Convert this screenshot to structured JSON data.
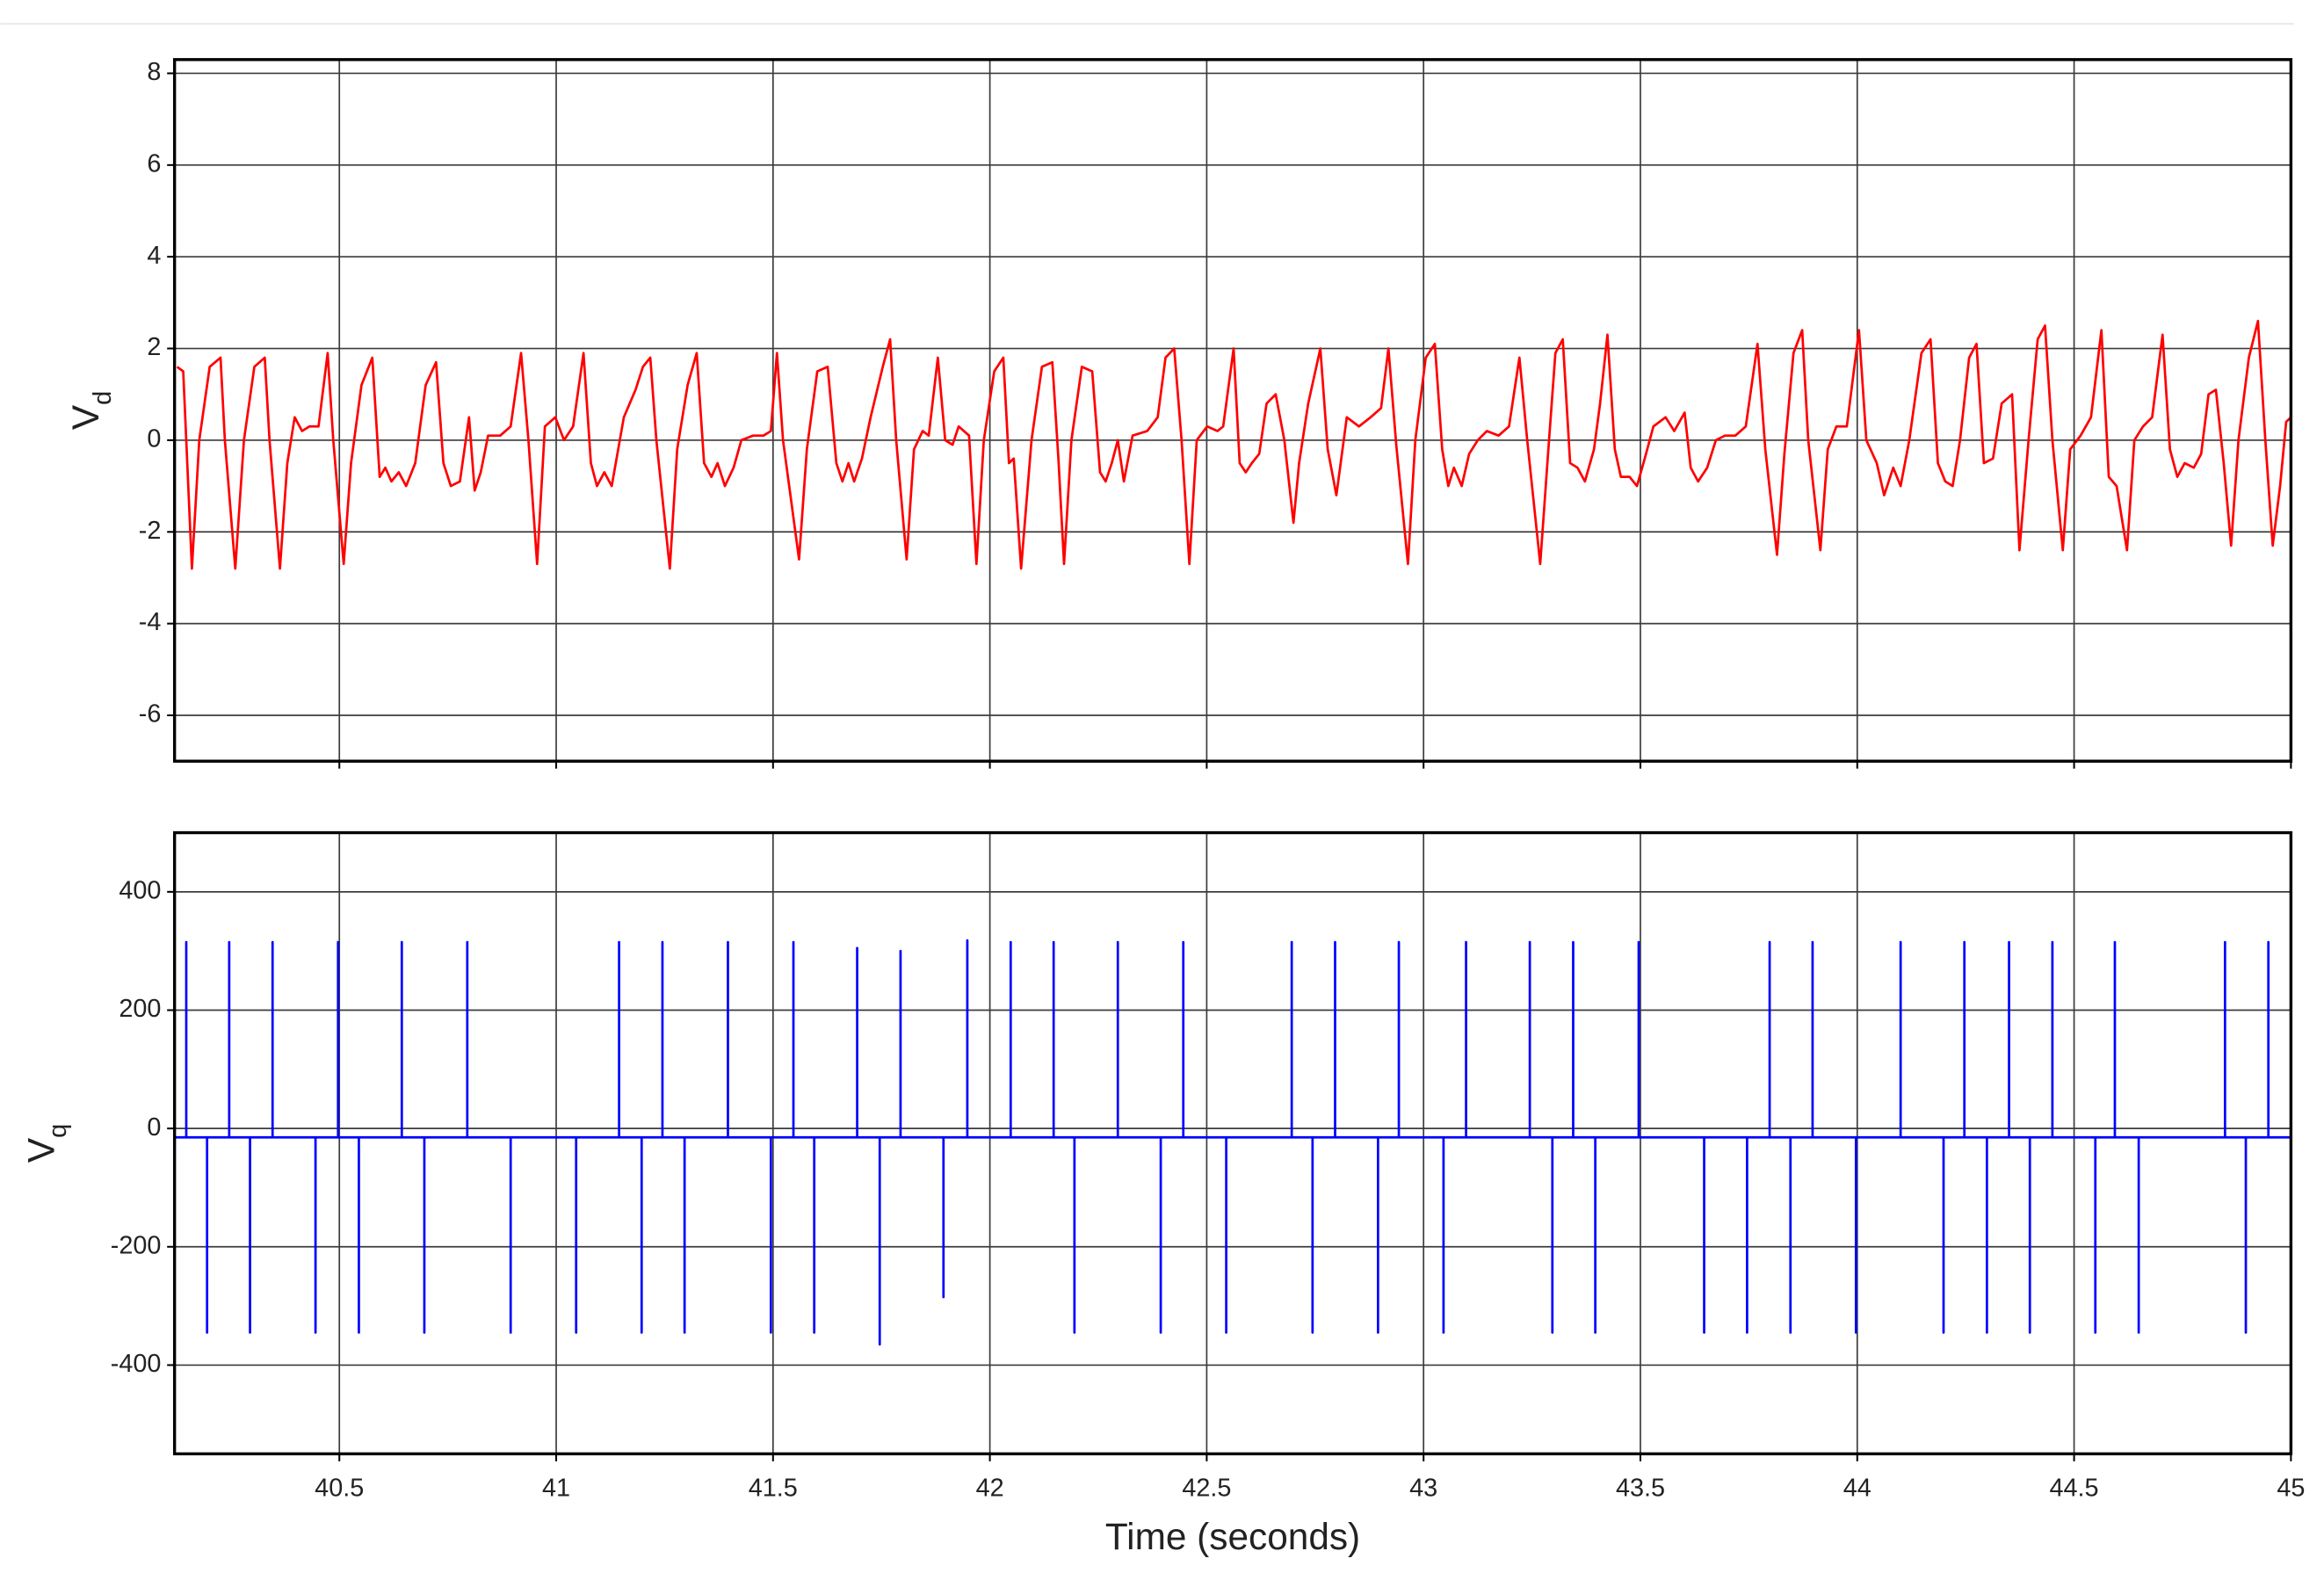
{
  "chart_data": [
    {
      "type": "line",
      "ylabel": "V",
      "ylabel_sub": "d",
      "grid": true,
      "xlim": [
        40.12,
        45
      ],
      "xticks": [
        40.5,
        41,
        41.5,
        42,
        42.5,
        43,
        43.5,
        44,
        44.5,
        45
      ],
      "xtick_labels_shown": false,
      "ylim": [
        -7,
        8.3
      ],
      "yticks": [
        -6,
        -4,
        -2,
        0,
        2,
        4,
        6,
        8
      ],
      "x": [
        40.126,
        40.14,
        40.16,
        40.177,
        40.201,
        40.226,
        40.236,
        40.26,
        40.28,
        40.304,
        40.328,
        40.339,
        40.363,
        40.38,
        40.397,
        40.414,
        40.431,
        40.452,
        40.473,
        40.486,
        40.51,
        40.527,
        40.551,
        40.576,
        40.593,
        40.606,
        40.62,
        40.637,
        40.654,
        40.675,
        40.699,
        40.723,
        40.74,
        40.757,
        40.778,
        40.799,
        40.812,
        40.826,
        40.843,
        40.871,
        40.895,
        40.919,
        40.936,
        40.956,
        40.974,
        40.998,
        41.018,
        41.039,
        41.063,
        41.08,
        41.094,
        41.111,
        41.128,
        41.156,
        41.183,
        41.2,
        41.217,
        41.231,
        41.262,
        41.279,
        41.303,
        41.324,
        41.341,
        41.358,
        41.372,
        41.389,
        41.409,
        41.427,
        41.454,
        41.478,
        41.495,
        41.509,
        41.523,
        41.56,
        41.578,
        41.602,
        41.626,
        41.646,
        41.66,
        41.674,
        41.687,
        41.705,
        41.725,
        41.753,
        41.77,
        41.784,
        41.808,
        41.825,
        41.845,
        41.859,
        41.88,
        41.897,
        41.914,
        41.928,
        41.952,
        41.969,
        41.986,
        42.01,
        42.031,
        42.044,
        42.055,
        42.072,
        42.096,
        42.12,
        42.144,
        42.158,
        42.171,
        42.188,
        42.212,
        42.236,
        42.254,
        42.267,
        42.281,
        42.295,
        42.309,
        42.329,
        42.363,
        42.387,
        42.405,
        42.425,
        42.442,
        42.46,
        42.477,
        42.501,
        42.525,
        42.538,
        42.562,
        42.576,
        42.59,
        42.604,
        42.621,
        42.638,
        42.659,
        42.679,
        42.7,
        42.713,
        42.734,
        42.762,
        42.779,
        42.799,
        42.823,
        42.851,
        42.878,
        42.902,
        42.919,
        42.937,
        42.964,
        42.981,
        43.005,
        43.026,
        43.043,
        43.057,
        43.07,
        43.088,
        43.105,
        43.125,
        43.146,
        43.173,
        43.197,
        43.221,
        43.239,
        43.269,
        43.287,
        43.304,
        43.321,
        43.338,
        43.355,
        43.372,
        43.393,
        43.407,
        43.424,
        43.441,
        43.455,
        43.475,
        43.492,
        43.51,
        43.53,
        43.558,
        43.578,
        43.602,
        43.616,
        43.633,
        43.654,
        43.674,
        43.695,
        43.719,
        43.743,
        43.77,
        43.788,
        43.815,
        43.832,
        43.853,
        43.873,
        43.887,
        43.915,
        43.932,
        43.952,
        43.976,
        44.004,
        44.021,
        44.045,
        44.062,
        44.083,
        44.1,
        44.12,
        44.148,
        44.169,
        44.186,
        44.203,
        44.22,
        44.237,
        44.258,
        44.275,
        44.292,
        44.313,
        44.333,
        44.357,
        44.374,
        44.395,
        44.416,
        44.433,
        44.45,
        44.474,
        44.491,
        44.515,
        44.539,
        44.563,
        44.58,
        44.598,
        44.622,
        44.639,
        44.659,
        44.68,
        44.704,
        44.721,
        44.738,
        44.755,
        44.776,
        44.793,
        44.81,
        44.827,
        44.845,
        44.862,
        44.879,
        44.903,
        44.924,
        44.941,
        44.958,
        44.975,
        44.989,
        45.0
      ],
      "series": [
        {
          "color": "#ff0000",
          "values": [
            1.6,
            1.5,
            -2.8,
            0,
            1.6,
            1.8,
            0,
            -2.8,
            0,
            1.6,
            1.8,
            0,
            -2.8,
            -0.5,
            0.5,
            0.2,
            0.3,
            0.3,
            1.9,
            0,
            -2.7,
            -0.5,
            1.2,
            1.8,
            -0.8,
            -0.6,
            -0.9,
            -0.7,
            -1.0,
            -0.5,
            1.2,
            1.7,
            -0.5,
            -1.0,
            -0.9,
            0.5,
            -1.1,
            -0.7,
            0.1,
            0.1,
            0.3,
            1.9,
            0,
            -2.7,
            0.3,
            0.5,
            0,
            0.3,
            1.9,
            -0.5,
            -1.0,
            -0.7,
            -1.0,
            0.5,
            1.1,
            1.6,
            1.8,
            0,
            -2.8,
            -0.2,
            1.2,
            1.9,
            -0.5,
            -0.8,
            -0.5,
            -1.0,
            -0.6,
            0,
            0.1,
            0.1,
            0.2,
            1.9,
            0,
            -2.6,
            -0.2,
            1.5,
            1.6,
            -0.5,
            -0.9,
            -0.5,
            -0.9,
            -0.4,
            0.5,
            1.6,
            2.2,
            0,
            -2.6,
            -0.2,
            0.2,
            0.1,
            1.8,
            0,
            -0.1,
            0.3,
            0.1,
            -2.7,
            0,
            1.5,
            1.8,
            -0.5,
            -0.4,
            -2.8,
            0,
            1.6,
            1.7,
            -0.4,
            -2.7,
            0,
            1.6,
            1.5,
            -0.7,
            -0.9,
            -0.5,
            0,
            -0.9,
            0.1,
            0.2,
            0.5,
            1.8,
            2.0,
            0,
            -2.7,
            0,
            0.3,
            0.2,
            0.3,
            2.0,
            -0.5,
            -0.7,
            -0.5,
            -0.3,
            0.8,
            1.0,
            0,
            -1.8,
            -0.5,
            0.8,
            2.0,
            -0.2,
            -1.2,
            0.5,
            0.3,
            0.5,
            0.7,
            2.0,
            -0.1,
            -2.7,
            0,
            1.8,
            2.1,
            -0.2,
            -1.0,
            -0.6,
            -1.0,
            -0.3,
            0,
            0.2,
            0.1,
            0.3,
            1.8,
            0,
            -2.7,
            -0.3,
            1.9,
            2.2,
            -0.5,
            -0.6,
            -0.9,
            -0.2,
            0.8,
            2.3,
            -0.2,
            -0.8,
            -0.8,
            -1.0,
            -0.4,
            0.3,
            0.5,
            0.2,
            0.6,
            -0.6,
            -0.9,
            -0.6,
            0,
            0.1,
            0.1,
            0.3,
            2.1,
            -0.2,
            -2.5,
            -0.3,
            1.9,
            2.4,
            0,
            -2.4,
            -0.2,
            0.3,
            0.3,
            2.4,
            0,
            -0.5,
            -1.2,
            -0.6,
            -1.0,
            0,
            1.9,
            2.2,
            -0.5,
            -0.9,
            -1.0,
            0,
            1.8,
            2.1,
            -0.5,
            -0.4,
            0.8,
            1.0,
            -2.4,
            0,
            2.2,
            2.5,
            0,
            -2.4,
            -0.2,
            0.1,
            0.5,
            2.4,
            -0.8,
            -1.0,
            -2.4,
            0,
            0.3,
            0.5,
            2.3,
            -0.2,
            -0.8,
            -0.5,
            -0.6,
            -0.3,
            1.0,
            1.1,
            -0.5,
            -2.3,
            0,
            1.8,
            2.6,
            0,
            -2.3,
            -1.0,
            0.4,
            0.5
          ]
        }
      ]
    },
    {
      "type": "line",
      "ylabel": "V",
      "ylabel_sub": "q",
      "xlabel": "Time (seconds)",
      "grid": true,
      "xlim": [
        40.12,
        45
      ],
      "xticks": [
        40.5,
        41,
        41.5,
        42,
        42.5,
        43,
        43.5,
        44,
        44.5,
        45
      ],
      "xtick_labels_shown": true,
      "ylim": [
        -550,
        500
      ],
      "yticks": [
        -400,
        -200,
        0,
        200,
        400
      ],
      "x": [
        40.12,
        40.147,
        40.147,
        40.147,
        40.195,
        40.195,
        40.195,
        40.246,
        40.246,
        40.246,
        40.294,
        40.294,
        40.294,
        40.346,
        40.346,
        40.346,
        40.445,
        40.445,
        40.445,
        40.497,
        40.497,
        40.497,
        40.545,
        40.545,
        40.545,
        40.644,
        40.644,
        40.644,
        40.696,
        40.696,
        40.696,
        40.795,
        40.795,
        40.795,
        40.895,
        40.895,
        40.895,
        41.046,
        41.046,
        41.046,
        41.145,
        41.145,
        41.145,
        41.197,
        41.197,
        41.197,
        41.245,
        41.245,
        41.245,
        41.296,
        41.296,
        41.296,
        41.396,
        41.396,
        41.396,
        41.495,
        41.495,
        41.495,
        41.547,
        41.547,
        41.547,
        41.595,
        41.595,
        41.595,
        41.694,
        41.694,
        41.694,
        41.746,
        41.746,
        41.746,
        41.794,
        41.794,
        41.794,
        41.893,
        41.893,
        41.893,
        41.948,
        41.948,
        41.948,
        42.048,
        42.048,
        42.048,
        42.147,
        42.147,
        42.147,
        42.195,
        42.195,
        42.195,
        42.295,
        42.295,
        42.295,
        42.394,
        42.394,
        42.394,
        42.446,
        42.446,
        42.446,
        42.545,
        42.545,
        42.545,
        42.696,
        42.696,
        42.696,
        42.744,
        42.744,
        42.744,
        42.796,
        42.796,
        42.796,
        42.895,
        42.895,
        42.895,
        42.943,
        42.943,
        42.943,
        43.046,
        43.046,
        43.046,
        43.098,
        43.098,
        43.098,
        43.245,
        43.245,
        43.245,
        43.297,
        43.297,
        43.297,
        43.345,
        43.345,
        43.345,
        43.396,
        43.396,
        43.396,
        43.496,
        43.496,
        43.496,
        43.647,
        43.647,
        43.647,
        43.746,
        43.746,
        43.746,
        43.798,
        43.798,
        43.798,
        43.846,
        43.846,
        43.846,
        43.897,
        43.897,
        43.897,
        43.997,
        43.997,
        43.997,
        44.1,
        44.1,
        44.1,
        44.199,
        44.199,
        44.199,
        44.247,
        44.247,
        44.247,
        44.299,
        44.299,
        44.299,
        44.35,
        44.35,
        44.35,
        44.398,
        44.398,
        44.398,
        44.45,
        44.45,
        44.45,
        44.549,
        44.549,
        44.549,
        44.594,
        44.594,
        44.594,
        44.649,
        44.649,
        44.649,
        44.848,
        44.848,
        44.848,
        44.896,
        44.896,
        44.896,
        44.948,
        44.948,
        44.948,
        45.0
      ],
      "series": [
        {
          "color": "#0000ff",
          "values": [
            -15,
            -15,
            315,
            -15,
            -15,
            -345,
            -15,
            -15,
            315,
            -15,
            -15,
            -345,
            -15,
            -15,
            315,
            -15,
            -15,
            -345,
            -15,
            -15,
            315,
            -15,
            -15,
            -345,
            -15,
            -15,
            315,
            -15,
            -15,
            -345,
            -15,
            -15,
            315,
            -15,
            -15,
            -345,
            -15,
            -15,
            -345,
            -15,
            -15,
            315,
            -15,
            -15,
            -345,
            -15,
            -15,
            315,
            -15,
            -15,
            -345,
            -15,
            -15,
            315,
            -15,
            -15,
            -345,
            -15,
            -15,
            315,
            -15,
            -15,
            -345,
            -15,
            -15,
            305,
            -15,
            -15,
            -365,
            -15,
            -15,
            300,
            -15,
            -15,
            -285,
            -15,
            -15,
            318,
            -15,
            -15,
            315,
            -15,
            -15,
            315,
            -15,
            -15,
            -345,
            -15,
            -15,
            315,
            -15,
            -15,
            -345,
            -15,
            -15,
            315,
            -15,
            -15,
            -345,
            -15,
            -15,
            315,
            -15,
            -15,
            -345,
            -15,
            -15,
            315,
            -15,
            -15,
            -345,
            -15,
            -15,
            315,
            -15,
            -15,
            -345,
            -15,
            -15,
            315,
            -15,
            -15,
            315,
            -15,
            -15,
            -345,
            -15,
            -15,
            315,
            -15,
            -15,
            -345,
            -15,
            -15,
            315,
            -15,
            -15,
            -345,
            -15,
            -15,
            -345,
            -15,
            -15,
            315,
            -15,
            -15,
            -345,
            -15,
            -15,
            315,
            -15,
            -15,
            -345,
            -15,
            -15,
            315,
            -15,
            -15,
            -345,
            -15,
            -15,
            315,
            -15,
            -15,
            -345,
            -15,
            -15,
            315,
            -15,
            -15,
            -345,
            -15,
            -15,
            315,
            -15,
            -15,
            -345,
            -15,
            -15,
            315,
            -15,
            -15,
            -345,
            -15,
            -15,
            315,
            -15,
            -15,
            -345,
            -15,
            -15,
            315,
            -15,
            -15
          ]
        }
      ]
    }
  ]
}
